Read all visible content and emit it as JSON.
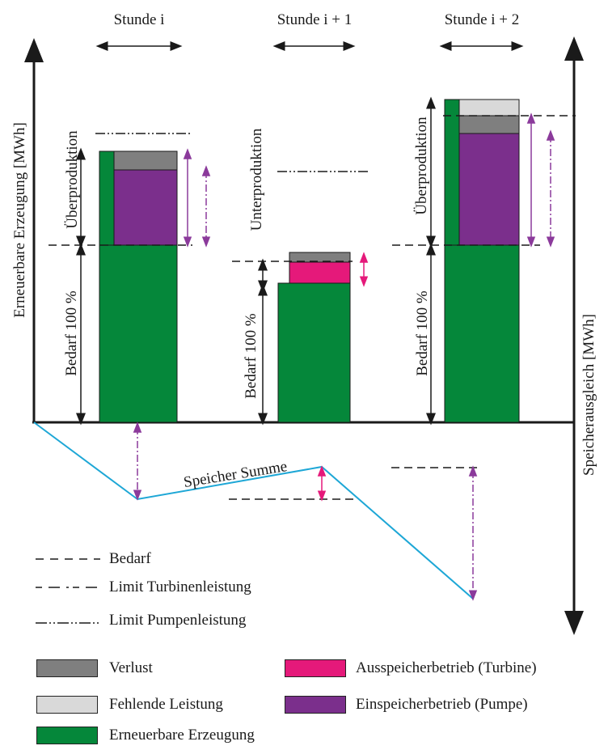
{
  "headers": {
    "hour_i": "Stunde i",
    "hour_i1": "Stunde i + 1",
    "hour_i2": "Stunde i + 2"
  },
  "axes": {
    "left": "Erneuerbare Erzeugung   [MWh]",
    "right": "Speicherausgleich   [MWh]"
  },
  "bar_labels": {
    "demand": "Bedarf 100 %",
    "overproduction": "Überproduktion",
    "underproduction": "Unterproduktion"
  },
  "curve_label": "Speicher Summe",
  "line_legend": {
    "demand": "Bedarf",
    "turbine_limit": "Limit Turbinenleistung",
    "pump_limit": "Limit Pumpenleistung"
  },
  "box_legend": {
    "loss": "Verlust",
    "missing": "Fehlende Leistung",
    "renewable": "Erneuerbare Erzeugung",
    "discharge": "Ausspeicherbetrieb (Turbine)",
    "charge": "Einspeicherbetrieb (Pumpe)"
  },
  "colors": {
    "renewable": "#05873a",
    "loss": "#7f7f7f",
    "missing": "#d9d9d9",
    "discharge": "#e5197a",
    "charge": "#7b2f8c",
    "storage_curve": "#1ea7d6",
    "arrow_purple": "#8b3a9b",
    "arrow_pink": "#e5197a"
  }
}
